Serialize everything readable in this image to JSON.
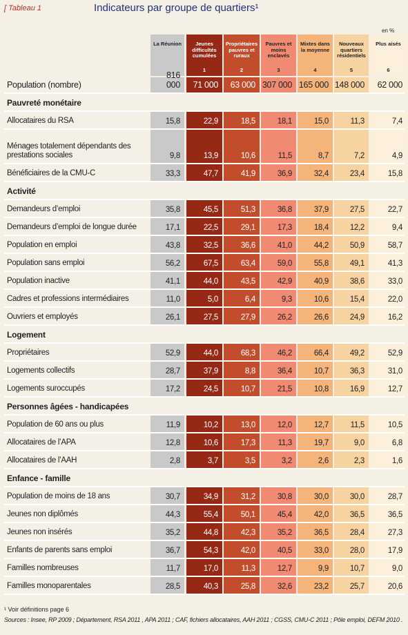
{
  "header": {
    "tag": "[ Tableau 1",
    "title": "Indicateurs par groupe de quartiers¹",
    "unit": "en %"
  },
  "columns": [
    {
      "label": "La Réunion"
    },
    {
      "label": "Jeunes difficultés cumulées",
      "number": "1"
    },
    {
      "label": "Propriétaires pauvres et ruraux",
      "number": "2"
    },
    {
      "label": "Pauvres et moins enclavés",
      "number": "3"
    },
    {
      "label": "Mixtes dans la moyenne",
      "number": "4"
    },
    {
      "label": "Nouveaux quartiers résidentiels",
      "number": "5"
    },
    {
      "label": "Plus aisés",
      "number": "6"
    }
  ],
  "population": {
    "label": "Population (nombre)",
    "values": [
      "816 000",
      "71 000",
      "63 000",
      "307 000",
      "165 000",
      "148 000",
      "62 000"
    ]
  },
  "sections": [
    {
      "title": "Pauvreté monétaire",
      "rows": [
        {
          "label": "Allocataires du RSA",
          "values": [
            "15,8",
            "22,9",
            "18,5",
            "18,1",
            "15,0",
            "11,3",
            "7,4"
          ]
        },
        {
          "label": "Ménages totalement dépendants des prestations sociales",
          "values": [
            "9,8",
            "13,9",
            "10,6",
            "11,5",
            "8,7",
            "7,2",
            "4,9"
          ]
        },
        {
          "label": "Bénéficiaires de la CMU-C",
          "values": [
            "33,3",
            "47,7",
            "41,9",
            "36,9",
            "32,4",
            "23,4",
            "15,8"
          ]
        }
      ]
    },
    {
      "title": "Activité",
      "rows": [
        {
          "label": "Demandeurs d’emploi",
          "values": [
            "35,8",
            "45,5",
            "51,3",
            "36,8",
            "37,9",
            "27,5",
            "22,7"
          ]
        },
        {
          "label": "Demandeurs d’emploi de longue durée",
          "values": [
            "17,1",
            "22,5",
            "29,1",
            "17,3",
            "18,4",
            "12,2",
            "9,4"
          ]
        },
        {
          "label": "Population en emploi",
          "values": [
            "43,8",
            "32,5",
            "36,6",
            "41,0",
            "44,2",
            "50,9",
            "58,7"
          ]
        },
        {
          "label": "Population sans emploi",
          "values": [
            "56,2",
            "67,5",
            "63,4",
            "59,0",
            "55,8",
            "49,1",
            "41,3"
          ]
        },
        {
          "label": "Population inactive",
          "values": [
            "41,1",
            "44,0",
            "43,5",
            "42,9",
            "40,9",
            "38,6",
            "33,0"
          ]
        },
        {
          "label": "Cadres et professions intermédiaires",
          "values": [
            "11,0",
            "5,0",
            "6,4",
            "9,3",
            "10,6",
            "15,4",
            "22,0"
          ]
        },
        {
          "label": "Ouvriers et employés",
          "values": [
            "26,1",
            "27,5",
            "27,9",
            "26,2",
            "26,6",
            "24,9",
            "16,2"
          ]
        }
      ]
    },
    {
      "title": "Logement",
      "rows": [
        {
          "label": "Propriétaires",
          "values": [
            "52,9",
            "44,0",
            "68,3",
            "46,2",
            "66,4",
            "49,2",
            "52,9"
          ]
        },
        {
          "label": "Logements collectifs",
          "values": [
            "28,7",
            "37,9",
            "8,8",
            "36,4",
            "10,7",
            "36,3",
            "31,0"
          ]
        },
        {
          "label": "Logements suroccupés",
          "values": [
            "17,2",
            "24,5",
            "10,7",
            "21,5",
            "10,8",
            "16,9",
            "12,7"
          ]
        }
      ]
    },
    {
      "title": "Personnes âgées - handicapées",
      "rows": [
        {
          "label": "Population de 60 ans ou plus",
          "values": [
            "11,9",
            "10,2",
            "13,0",
            "12,0",
            "12,7",
            "11,5",
            "10,5"
          ]
        },
        {
          "label": "Allocataires de l’APA",
          "values": [
            "12,8",
            "10,6",
            "17,3",
            "11,3",
            "19,7",
            "9,0",
            "6,8"
          ]
        },
        {
          "label": "Allocataires de l’AAH",
          "values": [
            "2,8",
            "3,7",
            "3,5",
            "3,2",
            "2,6",
            "2,3",
            "1,6"
          ]
        }
      ]
    },
    {
      "title": "Enfance - famille",
      "rows": [
        {
          "label": "Population de moins de 18 ans",
          "values": [
            "30,7",
            "34,9",
            "31,2",
            "30,8",
            "30,0",
            "30,0",
            "28,7"
          ]
        },
        {
          "label": "Jeunes non diplômés",
          "values": [
            "44,3",
            "55,4",
            "50,1",
            "45,4",
            "42,0",
            "36,5",
            "36,5"
          ]
        },
        {
          "label": "Jeunes non insérés",
          "values": [
            "35,2",
            "44,8",
            "42,3",
            "35,2",
            "36,5",
            "28,4",
            "27,3"
          ]
        },
        {
          "label": "Enfants de parents sans emploi",
          "values": [
            "36,7",
            "54,3",
            "42,0",
            "40,5",
            "33,0",
            "28,0",
            "17,9"
          ]
        },
        {
          "label": "Familles nombreuses",
          "values": [
            "11,7",
            "17,0",
            "11,3",
            "12,7",
            "9,9",
            "10,7",
            "9,0"
          ]
        },
        {
          "label": "Familles monoparentales",
          "values": [
            "28,5",
            "40,3",
            "25,8",
            "32,6",
            "23,2",
            "25,7",
            "20,6"
          ]
        }
      ]
    }
  ],
  "footnotes": {
    "note": "¹ Voir définitions page 6",
    "sources": "Sources : Insee, RP 2009 ; Département, RSA 2011 , APA 2011 ; CAF, fichiers allocataires, AAH 2011 ; CGSS, CMU-C 2011 ; Pôle emploi, DEFM 2010 ."
  }
}
